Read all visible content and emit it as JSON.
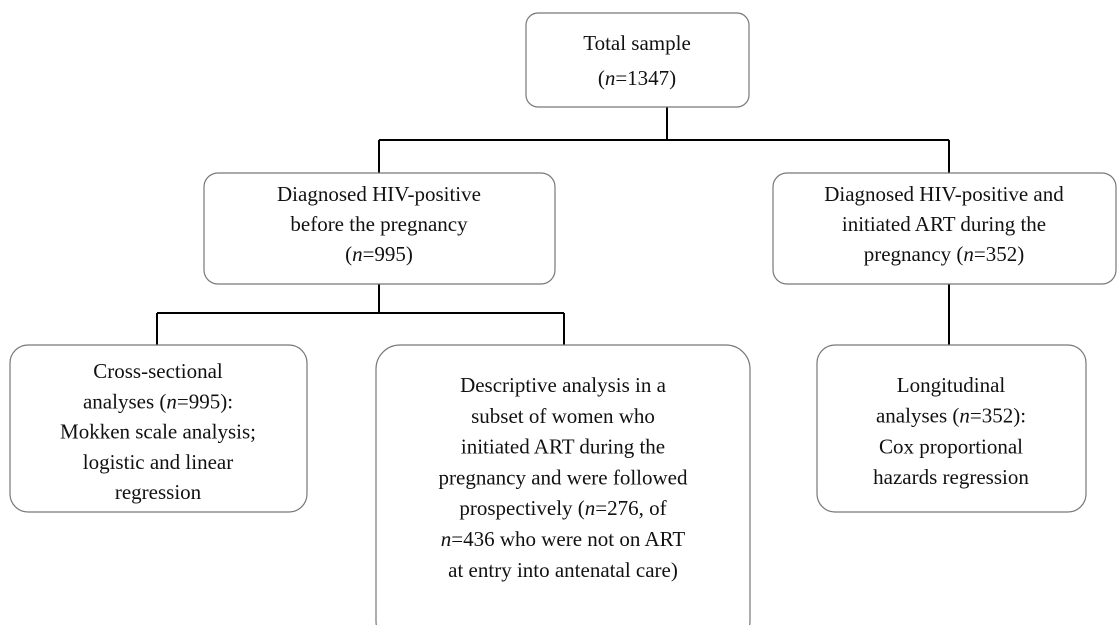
{
  "nodes": [
    {
      "lines": [
        "Total sample",
        "(n=1347)"
      ]
    },
    {
      "lines": [
        "Diagnosed HIV-positive",
        "before the pregnancy",
        "(n=995)"
      ]
    },
    {
      "lines": [
        "Diagnosed HIV-positive and",
        "initiated ART during the",
        "pregnancy (n=352)"
      ]
    },
    {
      "lines": [
        "Cross-sectional",
        "analyses (n=995):",
        "Mokken scale analysis;",
        "logistic and linear",
        "regression"
      ]
    },
    {
      "lines": [
        "Descriptive analysis in a",
        "subset of women who",
        "initiated ART during the",
        "pregnancy and were followed",
        "prospectively (n=276, of",
        "n=436 who were not on ART",
        "at entry into antenatal care)"
      ]
    },
    {
      "lines": [
        "Longitudinal",
        "analyses (n=352):",
        "Cox proportional",
        "hazards regression"
      ]
    }
  ]
}
